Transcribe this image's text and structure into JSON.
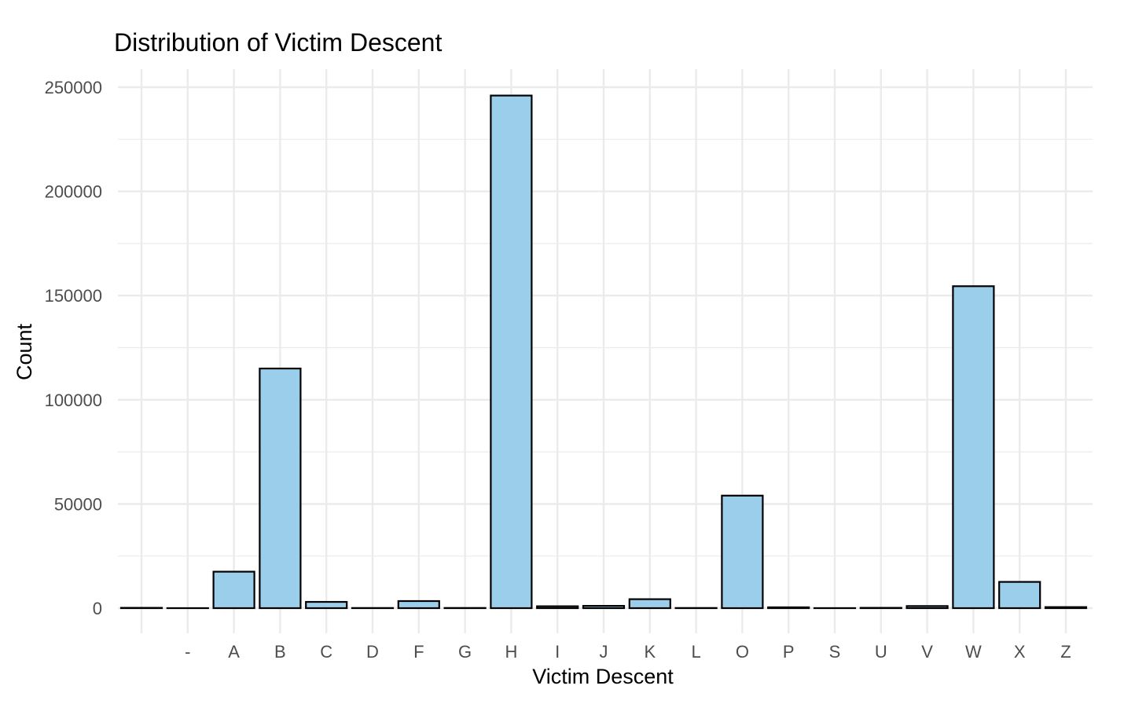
{
  "chart_data": {
    "type": "bar",
    "title": "Distribution of Victim Descent",
    "xlabel": "Victim Descent",
    "ylabel": "Count",
    "categories": [
      "",
      "-",
      "A",
      "B",
      "C",
      "D",
      "F",
      "G",
      "H",
      "I",
      "J",
      "K",
      "L",
      "O",
      "P",
      "S",
      "U",
      "V",
      "W",
      "X",
      "Z"
    ],
    "values": [
      150,
      2,
      17500,
      115000,
      3000,
      60,
      3400,
      80,
      246000,
      900,
      1100,
      4300,
      70,
      54000,
      400,
      20,
      150,
      1000,
      154500,
      12600,
      500
    ],
    "ylim": [
      0,
      250000
    ],
    "yticks": [
      0,
      50000,
      100000,
      150000,
      200000,
      250000
    ],
    "ytick_labels": [
      "0",
      "50000",
      "100000",
      "150000",
      "200000",
      "250000"
    ],
    "grid": true,
    "bar_fill": "#9ACEEB",
    "bar_stroke": "#000000",
    "grid_color": "#EBEBEB"
  }
}
